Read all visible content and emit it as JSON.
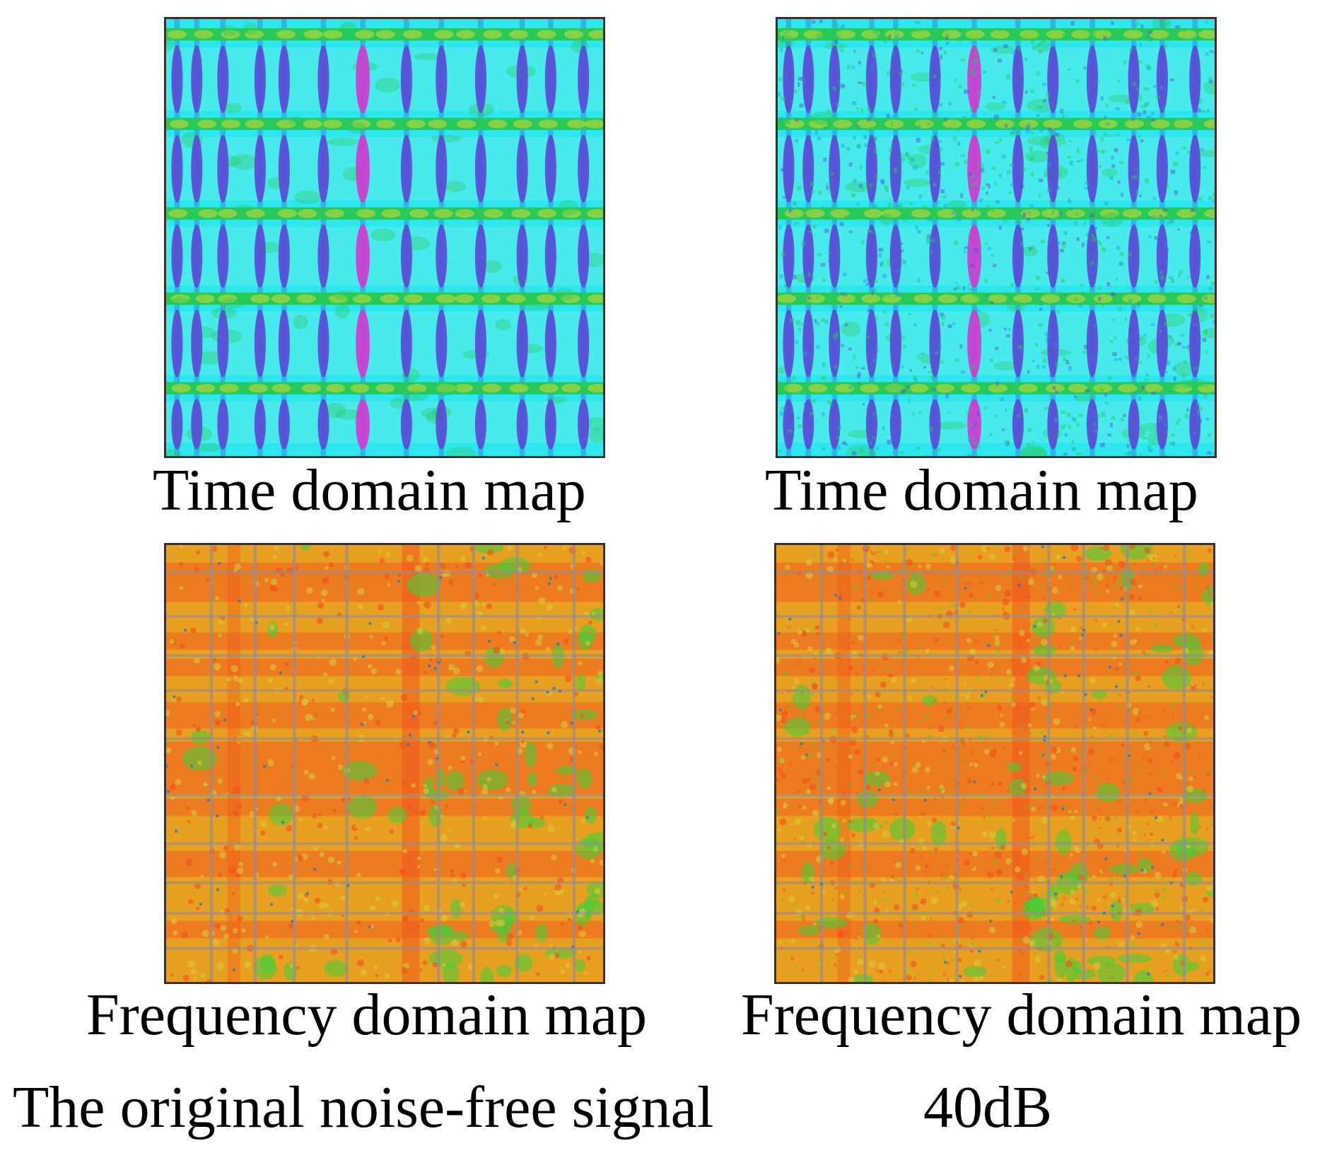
{
  "figure": {
    "panels": [
      {
        "id": "p-time-orig",
        "kind": "time",
        "caption": "Time domain map",
        "noisy": false
      },
      {
        "id": "p-time-40",
        "kind": "time",
        "caption": "Time domain map",
        "noisy": true
      },
      {
        "id": "p-freq-orig",
        "kind": "freq",
        "caption": "Frequency domain map",
        "noisy": false
      },
      {
        "id": "p-freq-40",
        "kind": "freq",
        "caption": "Frequency domain map",
        "noisy": true
      }
    ],
    "column_labels": {
      "original": "The original noise-free signal",
      "noisy": "40dB"
    },
    "palettes": {
      "time": {
        "base": "#2de6ee",
        "grid": "#27c95a",
        "band": "#5a49d6",
        "band_hot": "#d03ad0",
        "light": "#7ff0e8",
        "yellow": "#c7d83a"
      },
      "freq": {
        "base": "#e8a020",
        "hot": "#f2501e",
        "green": "#3fcf3a",
        "grey": "#9a8c8c",
        "yellow": "#d9c83a",
        "blue": "#2a7bb8"
      }
    }
  }
}
